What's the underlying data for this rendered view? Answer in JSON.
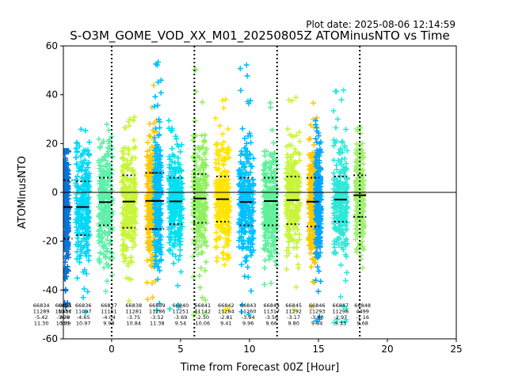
{
  "plot_date": "Plot date: 2025-08-06 12:14:59",
  "chart_data": {
    "type": "scatter",
    "title": "S-O3M_GOME_VOD_XX_M01_20250805Z ATOMinusNTO vs Time",
    "xlabel": "Time from Forecast 00Z [Hour]",
    "ylabel": "ATOMinusNTO",
    "xlim": [
      -3.5,
      25
    ],
    "ylim": [
      -60,
      60
    ],
    "xticks": [
      0,
      5,
      10,
      15,
      20,
      25
    ],
    "yticks": [
      -60,
      -40,
      -20,
      0,
      20,
      40,
      60
    ],
    "grid": false,
    "zero_line": 0,
    "vertical_dotted_lines": [
      0,
      6,
      12,
      18
    ],
    "marker": "+",
    "colors": [
      "#0a74d6",
      "#00d8f5",
      "#36e8c8",
      "#7cf07c",
      "#c8f53a",
      "#ffe400",
      "#ffc800",
      "#00c0ff"
    ],
    "orbits": [
      {
        "center": -3.3,
        "width": 0.35,
        "lo": -55,
        "hi": 17,
        "mean": -6,
        "sdlo": -19,
        "sdhi": 5,
        "color": "#0a74d6"
      },
      {
        "center": -2.1,
        "width": 1.0,
        "lo": -50,
        "hi": 28,
        "mean": -6.0,
        "sdlo": -17.5,
        "sdhi": 4.5,
        "color": "#00d8f5"
      },
      {
        "center": -0.45,
        "width": 1.0,
        "lo": -48,
        "hi": 33,
        "mean": -4.0,
        "sdlo": -13.5,
        "sdhi": 6.0,
        "color": "#5ef0a8"
      },
      {
        "center": 1.25,
        "width": 1.0,
        "lo": -50,
        "hi": 32,
        "mean": -3.75,
        "sdlo": -14.5,
        "sdhi": 7.0,
        "color": "#c8f53a"
      },
      {
        "center": 2.9,
        "width": 0.7,
        "lo": -50,
        "hi": 45,
        "mean": -3.5,
        "sdlo": -15.0,
        "sdhi": 8.0,
        "color": "#ffc800"
      },
      {
        "center": 3.35,
        "width": 0.5,
        "lo": -52,
        "hi": 55,
        "mean": -3.5,
        "sdlo": -15.0,
        "sdhi": 8.0,
        "color": "#00c0ff"
      },
      {
        "center": 4.65,
        "width": 1.0,
        "lo": -50,
        "hi": 30,
        "mean": -3.69,
        "sdlo": -13.0,
        "sdhi": 6.0,
        "color": "#00e0f0"
      },
      {
        "center": 6.4,
        "width": 1.0,
        "lo": -52,
        "hi": 53,
        "mean": -2.5,
        "sdlo": -12.5,
        "sdhi": 7.5,
        "color": "#90f060"
      },
      {
        "center": 8.05,
        "width": 1.0,
        "lo": -50,
        "hi": 40,
        "mean": -2.81,
        "sdlo": -12.0,
        "sdhi": 6.5,
        "color": "#ffe400"
      },
      {
        "center": 9.75,
        "width": 1.1,
        "lo": -55,
        "hi": 54,
        "mean": -3.94,
        "sdlo": -13.5,
        "sdhi": 6.0,
        "color": "#00c0ff"
      },
      {
        "center": 11.5,
        "width": 1.0,
        "lo": -50,
        "hi": 45,
        "mean": -3.56,
        "sdlo": -13.5,
        "sdhi": 6.0,
        "color": "#60f09a"
      },
      {
        "center": 13.15,
        "width": 1.0,
        "lo": -55,
        "hi": 40,
        "mean": -3.17,
        "sdlo": -13.0,
        "sdhi": 6.5,
        "color": "#c8f53a"
      },
      {
        "center": 14.6,
        "width": 0.6,
        "lo": -50,
        "hi": 38,
        "mean": -3.8,
        "sdlo": -14.0,
        "sdhi": 6.0,
        "color": "#ffc800"
      },
      {
        "center": 15.0,
        "width": 0.4,
        "lo": -55,
        "hi": 30,
        "mean": -3.8,
        "sdlo": -14.0,
        "sdhi": 6.0,
        "color": "#00a8ff"
      },
      {
        "center": 16.6,
        "width": 1.0,
        "lo": -55,
        "hi": 44,
        "mean": -2.97,
        "sdlo": -12.0,
        "sdhi": 6.5,
        "color": "#2ee8d8"
      },
      {
        "center": 18.0,
        "width": 0.6,
        "lo": -40,
        "hi": 28,
        "mean": -1.16,
        "sdlo": -10.0,
        "sdhi": 7.0,
        "color": "#a0f070"
      }
    ],
    "orbit_stats": [
      {
        "x": -5.1,
        "orbit": "66834",
        "n": "11289",
        "mean": "-5.42",
        "sd": "11.30"
      },
      {
        "x": -3.5,
        "orbit": "66835",
        "n": "11337",
        "mean": "-3.79",
        "sd": "10.79"
      },
      {
        "x": -2.05,
        "orbit": "66836",
        "n": "11097",
        "mean": "-4.65",
        "sd": "10.97"
      },
      {
        "x": -3.4,
        "orbit": "Orbit",
        "n": "Nobs",
        "mean": "Ave",
        "sd": "Std"
      },
      {
        "x": -0.2,
        "orbit": "66837",
        "n": "11151",
        "mean": "-4.04",
        "sd": "9.98"
      },
      {
        "x": 1.6,
        "orbit": "66838",
        "n": "11281",
        "mean": "-3.75",
        "sd": "10.84"
      },
      {
        "x": 3.3,
        "orbit": "66839",
        "n": "11286",
        "mean": "-3.52",
        "sd": "11.38"
      },
      {
        "x": 5.0,
        "orbit": "66840",
        "n": "11251",
        "mean": "-3.69",
        "sd": "9.54"
      },
      {
        "x": 6.6,
        "orbit": "66841",
        "n": "11142",
        "mean": "-2.50",
        "sd": "10.06"
      },
      {
        "x": 8.3,
        "orbit": "66842",
        "n": "11284",
        "mean": "-2.81",
        "sd": "9.41"
      },
      {
        "x": 9.9,
        "orbit": "66843",
        "n": "11260",
        "mean": "-3.94",
        "sd": "9.96"
      },
      {
        "x": 11.6,
        "orbit": "66844",
        "n": "11317",
        "mean": "-3.56",
        "sd": "9.66"
      },
      {
        "x": 13.2,
        "orbit": "66845",
        "n": "11292",
        "mean": "-3.17",
        "sd": "9.80"
      },
      {
        "x": 14.9,
        "orbit": "66846",
        "n": "11293",
        "mean": "-3.80",
        "sd": "9.84"
      },
      {
        "x": 16.6,
        "orbit": "66847",
        "n": "11298",
        "mean": "-2.97",
        "sd": "9.33"
      },
      {
        "x": 18.2,
        "orbit": "66848",
        "n": "4499",
        "mean": "-1.16",
        "sd": "9.68"
      }
    ]
  }
}
